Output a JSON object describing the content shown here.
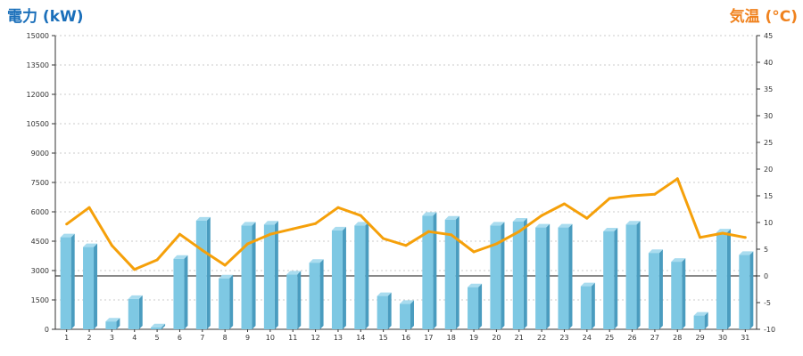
{
  "chart_data": {
    "type": "bar",
    "title": "",
    "xlabel": "",
    "categories": [
      "1",
      "2",
      "3",
      "4",
      "5",
      "6",
      "7",
      "8",
      "9",
      "10",
      "11",
      "12",
      "13",
      "14",
      "15",
      "16",
      "17",
      "18",
      "19",
      "20",
      "21",
      "22",
      "23",
      "24",
      "25",
      "26",
      "27",
      "28",
      "29",
      "30",
      "31"
    ],
    "series": [
      {
        "name": "電力 (kW)",
        "type": "bar",
        "axis": "left",
        "color": "#7ec8e3",
        "values": [
          4700,
          4200,
          400,
          1550,
          100,
          3600,
          5550,
          2600,
          5300,
          5350,
          2800,
          3400,
          5050,
          5300,
          1700,
          1300,
          5800,
          5600,
          2150,
          5300,
          5500,
          5200,
          5200,
          2200,
          5000,
          5350,
          3900,
          3450,
          700,
          4950,
          3800
        ]
      },
      {
        "name": "気温 (°C)",
        "type": "line",
        "axis": "right",
        "color": "#f5a00a",
        "values": [
          9.7,
          12.8,
          5.7,
          1.2,
          3.0,
          7.8,
          4.8,
          2.0,
          6.0,
          7.8,
          8.8,
          9.8,
          12.8,
          11.3,
          7.0,
          5.7,
          8.3,
          7.7,
          4.5,
          6.0,
          8.3,
          11.3,
          13.5,
          10.8,
          14.5,
          15.0,
          15.3,
          18.2,
          7.2,
          8.0,
          7.2
        ]
      }
    ],
    "left_axis": {
      "label": "電力 (kW)",
      "color": "#1a6fba",
      "ylim": [
        0,
        15000
      ],
      "ticks": [
        "0",
        "1500",
        "3000",
        "4500",
        "6000",
        "7500",
        "9000",
        "10500",
        "12000",
        "13500",
        "15000"
      ]
    },
    "right_axis": {
      "label": "気温 (°C)",
      "color": "#f0821e",
      "ylim": [
        -10,
        45
      ],
      "ticks": [
        "-10",
        "-5",
        "0",
        "5",
        "10",
        "15",
        "20",
        "25",
        "30",
        "35",
        "40",
        "45"
      ]
    },
    "zero_line_temperature": 0,
    "grid": true,
    "grid_style": "dotted",
    "bar_color_side": "#4a9cbf",
    "bar_color_top": "#a9dcef",
    "legend": "none"
  }
}
